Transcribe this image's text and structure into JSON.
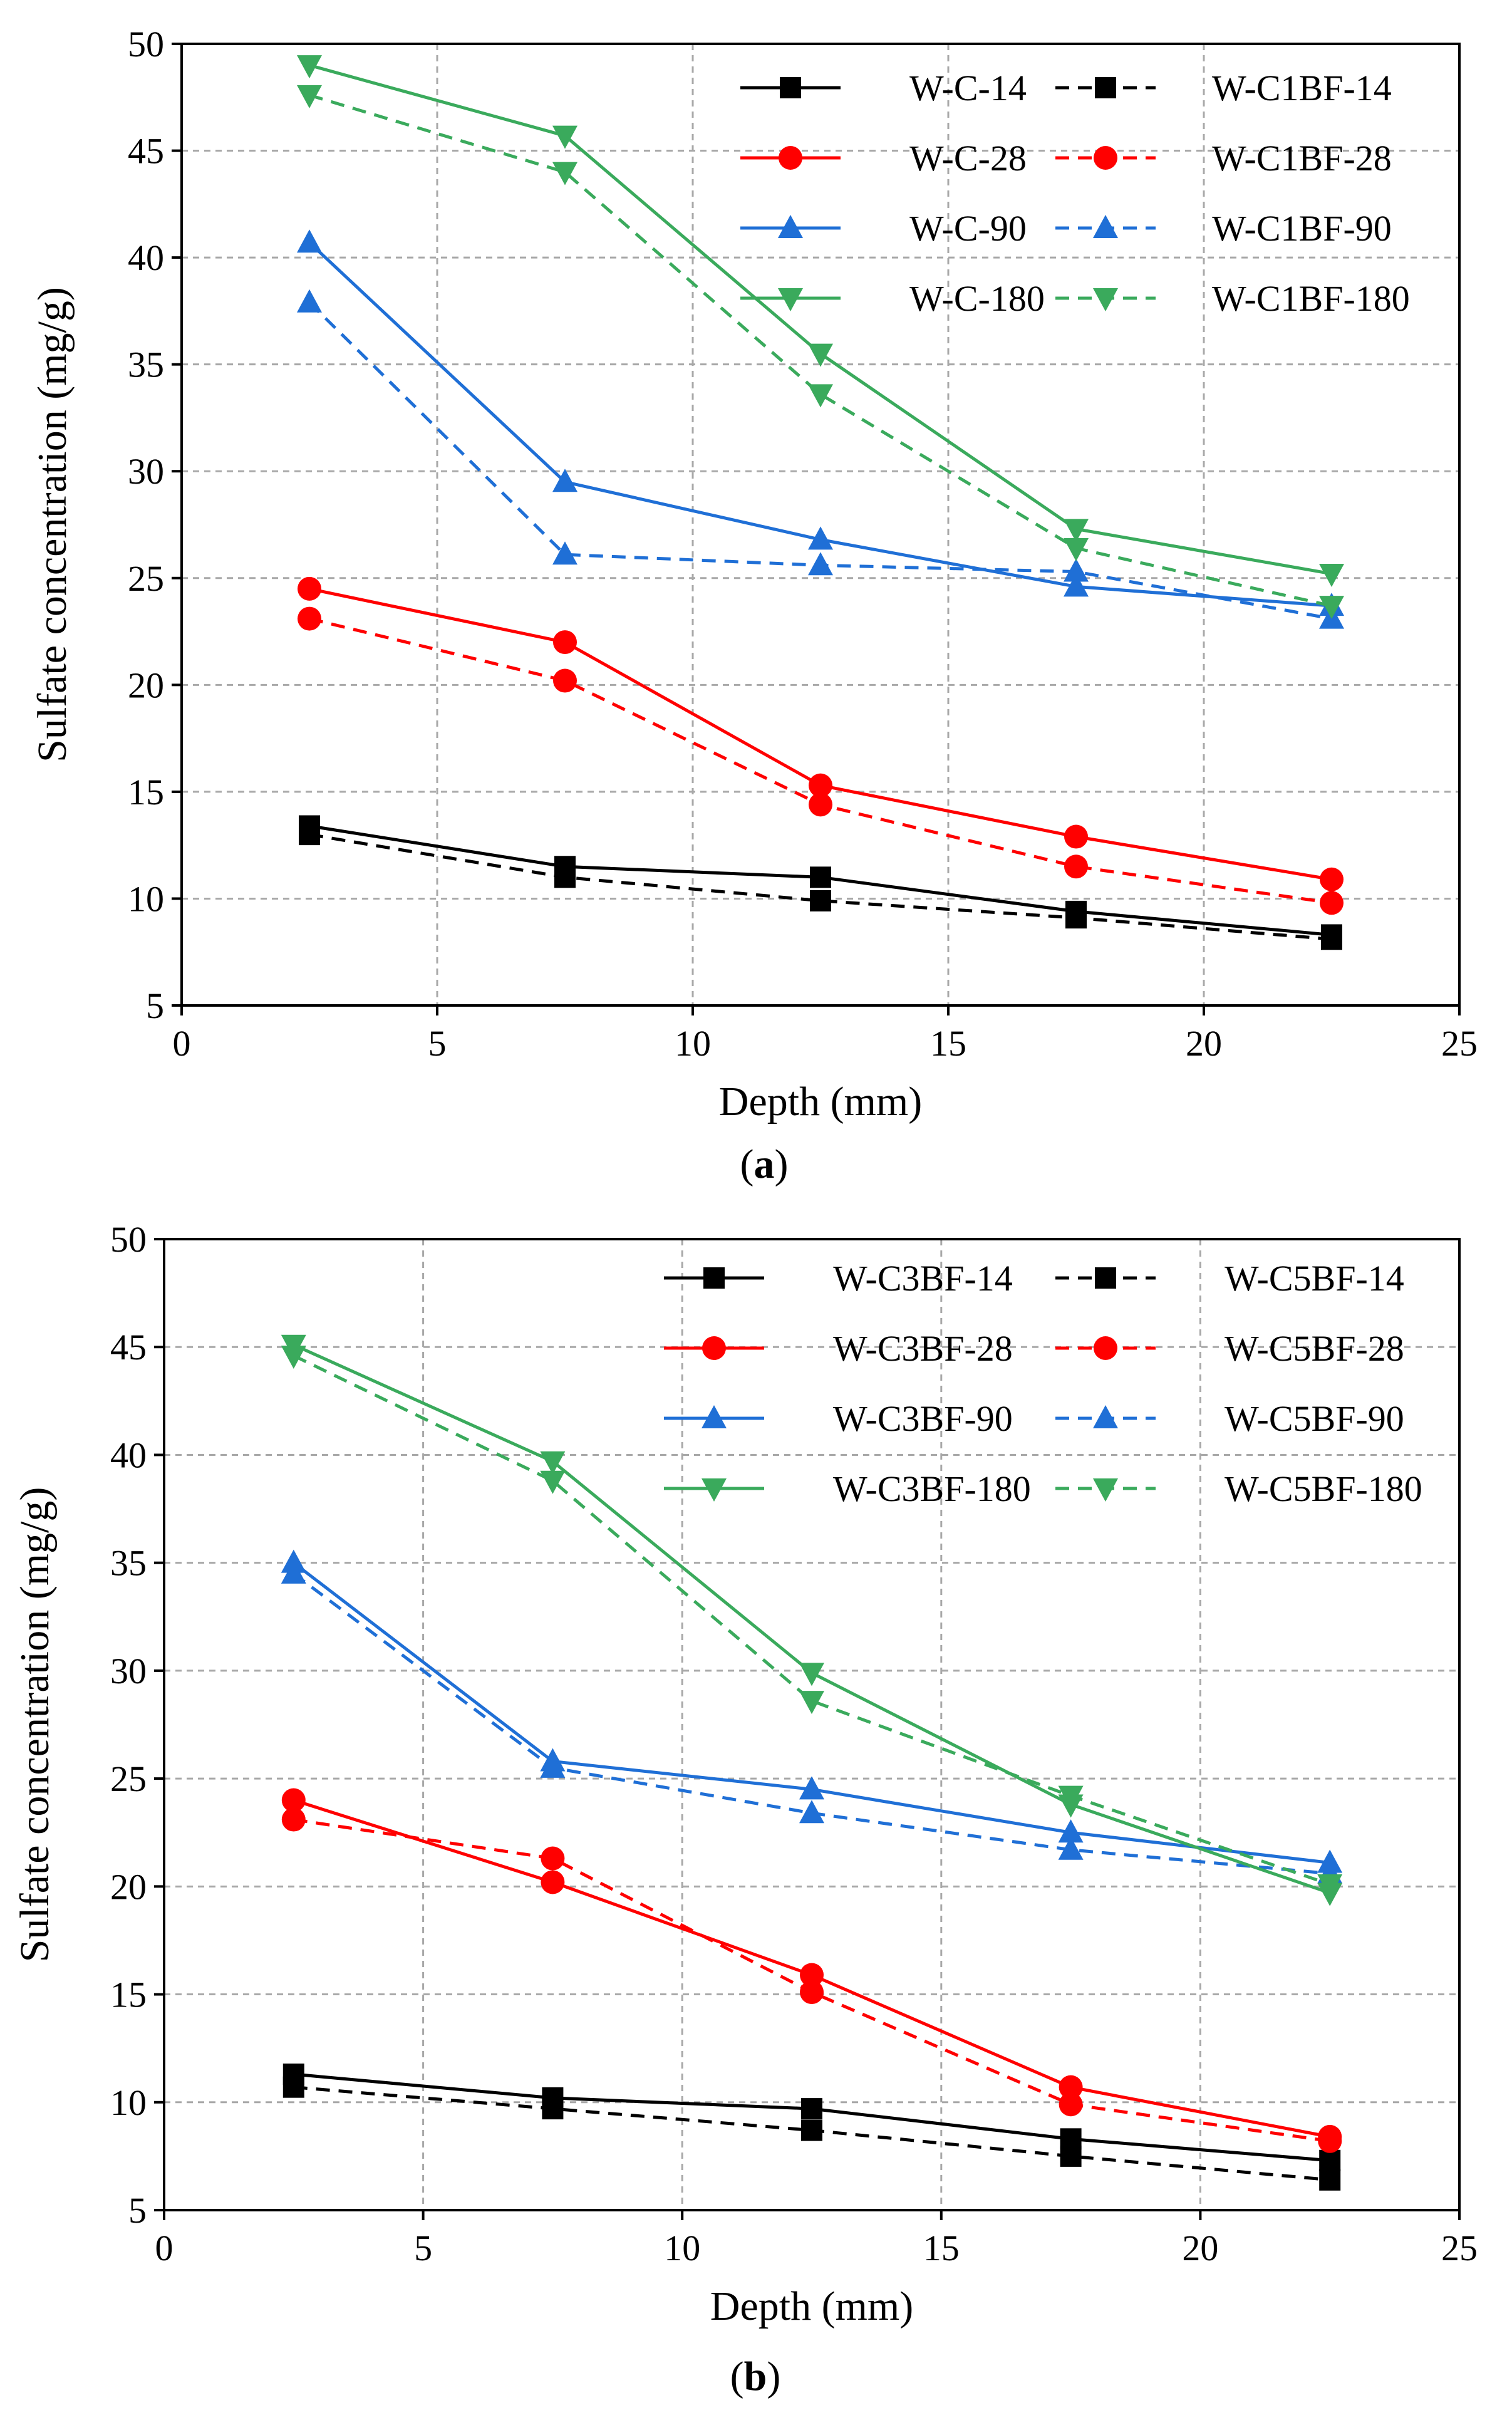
{
  "chart_data": [
    {
      "type": "line",
      "panel": "a",
      "caption": {
        "open": "(",
        "letter": "a",
        "close": ")"
      },
      "title": "",
      "xlabel": "Depth (mm)",
      "ylabel": "Sulfate concentration (mg/g)",
      "xlim": [
        0,
        25
      ],
      "ylim": [
        5,
        50
      ],
      "xticks": [
        0,
        5,
        10,
        15,
        20,
        25
      ],
      "yticks": [
        5,
        10,
        15,
        20,
        25,
        30,
        35,
        40,
        45,
        50
      ],
      "grid": true,
      "legend_position": "top-right",
      "x": [
        2.5,
        7.5,
        12.5,
        17.5,
        22.5
      ],
      "series": [
        {
          "name": "W-C-14",
          "color": "#000000",
          "marker": "square",
          "dash": "solid",
          "values": [
            13.4,
            11.5,
            11.0,
            9.4,
            8.3
          ]
        },
        {
          "name": "W-C1BF-14",
          "color": "#000000",
          "marker": "square",
          "dash": "dashed",
          "values": [
            13.0,
            11.0,
            9.9,
            9.1,
            8.1
          ]
        },
        {
          "name": "W-C-28",
          "color": "#ff0000",
          "marker": "circle",
          "dash": "solid",
          "values": [
            24.5,
            22.0,
            15.3,
            12.9,
            10.9
          ]
        },
        {
          "name": "W-C1BF-28",
          "color": "#ff0000",
          "marker": "circle",
          "dash": "dashed",
          "values": [
            23.1,
            20.2,
            14.4,
            11.5,
            9.8
          ]
        },
        {
          "name": "W-C-90",
          "color": "#1f6fd6",
          "marker": "triangle-up",
          "dash": "solid",
          "values": [
            40.7,
            29.5,
            26.8,
            24.6,
            23.7
          ]
        },
        {
          "name": "W-C1BF-90",
          "color": "#1f6fd6",
          "marker": "triangle-up",
          "dash": "dashed",
          "values": [
            37.9,
            26.1,
            25.6,
            25.3,
            23.1
          ]
        },
        {
          "name": "W-C-180",
          "color": "#3aaa5c",
          "marker": "triangle-down",
          "dash": "solid",
          "values": [
            49.0,
            45.7,
            35.5,
            27.3,
            25.2
          ]
        },
        {
          "name": "W-C1BF-180",
          "color": "#3aaa5c",
          "marker": "triangle-down",
          "dash": "dashed",
          "values": [
            47.6,
            44.0,
            33.6,
            26.4,
            23.7
          ]
        }
      ]
    },
    {
      "type": "line",
      "panel": "b",
      "caption": {
        "open": "(",
        "letter": "b",
        "close": ")"
      },
      "title": "",
      "xlabel": "Depth (mm)",
      "ylabel": "Sulfate concentration (mg/g)",
      "xlim": [
        0,
        25
      ],
      "ylim": [
        5,
        50
      ],
      "xticks": [
        0,
        5,
        10,
        15,
        20,
        25
      ],
      "yticks": [
        5,
        10,
        15,
        20,
        25,
        30,
        35,
        40,
        45,
        50
      ],
      "grid": true,
      "legend_position": "top-right",
      "x": [
        2.5,
        7.5,
        12.5,
        17.5,
        22.5
      ],
      "series": [
        {
          "name": "W-C3BF-14",
          "color": "#000000",
          "marker": "square",
          "dash": "solid",
          "values": [
            11.3,
            10.2,
            9.7,
            8.3,
            7.3
          ]
        },
        {
          "name": "W-C5BF-14",
          "color": "#000000",
          "marker": "square",
          "dash": "dashed",
          "values": [
            10.7,
            9.7,
            8.7,
            7.5,
            6.4
          ]
        },
        {
          "name": "W-C3BF-28",
          "color": "#ff0000",
          "marker": "circle",
          "dash": "solid",
          "values": [
            24.0,
            20.2,
            15.9,
            10.7,
            8.4
          ]
        },
        {
          "name": "W-C5BF-28",
          "color": "#ff0000",
          "marker": "circle",
          "dash": "dashed",
          "values": [
            23.1,
            21.3,
            15.1,
            9.9,
            8.2
          ]
        },
        {
          "name": "W-C3BF-90",
          "color": "#1f6fd6",
          "marker": "triangle-up",
          "dash": "solid",
          "values": [
            35.0,
            25.8,
            24.5,
            22.5,
            21.1
          ]
        },
        {
          "name": "W-C5BF-90",
          "color": "#1f6fd6",
          "marker": "triangle-up",
          "dash": "dashed",
          "values": [
            34.5,
            25.5,
            23.4,
            21.7,
            20.6
          ]
        },
        {
          "name": "W-C3BF-180",
          "color": "#3aaa5c",
          "marker": "triangle-down",
          "dash": "solid",
          "values": [
            45.1,
            39.7,
            29.9,
            23.8,
            19.7
          ]
        },
        {
          "name": "W-C5BF-180",
          "color": "#3aaa5c",
          "marker": "triangle-down",
          "dash": "dashed",
          "values": [
            44.6,
            38.8,
            28.6,
            24.2,
            20.1
          ]
        }
      ]
    }
  ]
}
